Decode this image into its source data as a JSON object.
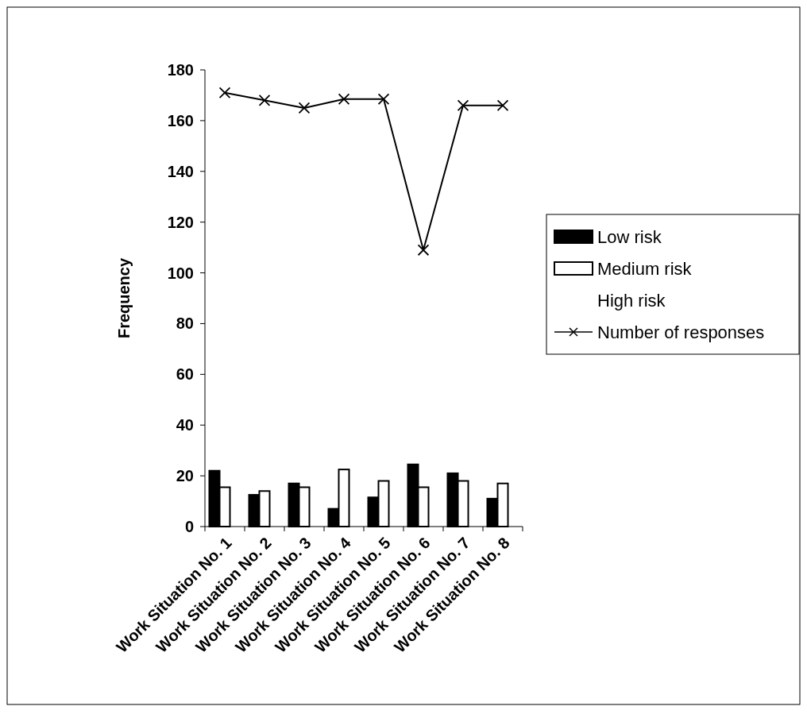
{
  "chart_data": {
    "type": "bar",
    "ylabel": "Frequency",
    "categories": [
      "Work Situation No. 1",
      "Work Situation No. 2",
      "Work Situation No. 3",
      "Work Situation No. 4",
      "Work Situation No. 5",
      "Work Situation No. 6",
      "Work Situation No. 7",
      "Work Situation No. 8"
    ],
    "series": [
      {
        "name": "Low risk",
        "color": "#000000",
        "values": [
          22,
          12.5,
          17,
          7,
          11.5,
          24.5,
          21,
          11
        ]
      },
      {
        "name": "Medium risk",
        "color": "#ffffff",
        "values": [
          15.5,
          14,
          15.5,
          22.5,
          18,
          15.5,
          18,
          17
        ]
      },
      {
        "name": "High risk",
        "values": [
          null,
          null,
          null,
          null,
          null,
          null,
          null,
          null
        ]
      },
      {
        "name": "Number of responses",
        "type": "line",
        "color": "#000000",
        "marker": "cross",
        "values": [
          171,
          168,
          165,
          168.5,
          168.5,
          109,
          166,
          166
        ]
      }
    ],
    "ylim": [
      0,
      180
    ],
    "yticks": [
      0,
      20,
      40,
      60,
      80,
      100,
      120,
      140,
      160,
      180
    ],
    "grid": false,
    "legend": "right"
  }
}
